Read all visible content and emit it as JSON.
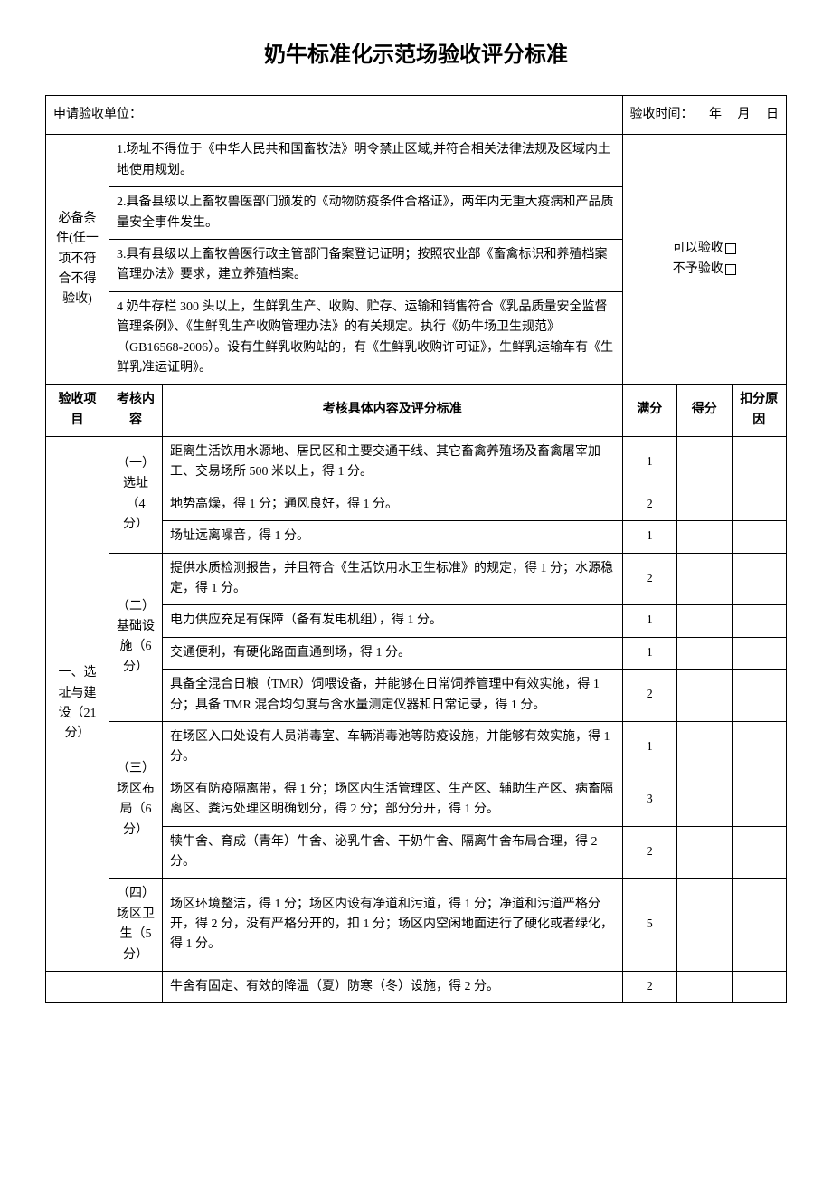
{
  "title": "奶牛标准化示范场验收评分标准",
  "header": {
    "unit_label": "申请验收单位：",
    "date_label": "验收时间：",
    "year": "年",
    "month": "月",
    "day": "日"
  },
  "prerequisites": {
    "label": "必备条件(任一项不符合不得验收)",
    "items": [
      "1.场址不得位于《中华人民共和国畜牧法》明令禁止区域,并符合相关法律法规及区域内土地使用规划。",
      "2.具备县级以上畜牧兽医部门颁发的《动物防疫条件合格证》，两年内无重大疫病和产品质量安全事件发生。",
      "3.具有县级以上畜牧兽医行政主管部门备案登记证明；按照农业部《畜禽标识和养殖档案管理办法》要求，建立养殖档案。",
      "4 奶牛存栏 300 头以上，生鲜乳生产、收购、贮存、运输和销售符合《乳品质量安全监督管理条例》、《生鲜乳生产收购管理办法》的有关规定。执行《奶牛场卫生规范》（GB16568-2006）。设有生鲜乳收购站的，有《生鲜乳收购许可证》，生鲜乳运输车有《生鲜乳准运证明》。"
    ],
    "accept_label": "可以验收",
    "reject_label": "不予验收"
  },
  "table_headers": {
    "project": "验收项目",
    "content": "考核内容",
    "criteria": "考核具体内容及评分标准",
    "full_score": "满分",
    "earned": "得分",
    "reason": "扣分原因"
  },
  "section1": {
    "title": "一、选址与建设（21 分）",
    "sub1": {
      "title": "（一）选址（4 分）",
      "rows": [
        {
          "text": "距离生活饮用水源地、居民区和主要交通干线、其它畜禽养殖场及畜禽屠宰加工、交易场所 500 米以上，得 1 分。",
          "score": "1"
        },
        {
          "text": "地势高燥，得 1 分；通风良好，得 1 分。",
          "score": "2"
        },
        {
          "text": "场址远离噪音，得 1 分。",
          "score": "1"
        }
      ]
    },
    "sub2": {
      "title": "（二）基础设施（6 分）",
      "rows": [
        {
          "text": "提供水质检测报告，并且符合《生活饮用水卫生标准》的规定，得 1 分；水源稳定，得 1 分。",
          "score": "2"
        },
        {
          "text": "电力供应充足有保障（备有发电机组），得 1 分。",
          "score": "1"
        },
        {
          "text": "交通便利，有硬化路面直通到场，得 1 分。",
          "score": "1"
        },
        {
          "text": "具备全混合日粮（TMR）饲喂设备，并能够在日常饲养管理中有效实施，得 1 分；具备 TMR 混合均匀度与含水量测定仪器和日常记录，得 1 分。",
          "score": "2"
        }
      ]
    },
    "sub3": {
      "title": "（三）场区布局（6 分）",
      "rows": [
        {
          "text": "在场区入口处设有人员消毒室、车辆消毒池等防疫设施，并能够有效实施，得 1 分。",
          "score": "1"
        },
        {
          "text": "场区有防疫隔离带，得 1 分；场区内生活管理区、生产区、辅助生产区、病畜隔离区、粪污处理区明确划分，得 2 分；部分分开，得 1 分。",
          "score": "3"
        },
        {
          "text": "犊牛舍、育成（青年）牛舍、泌乳牛舍、干奶牛舍、隔离牛舍布局合理，得 2 分。",
          "score": "2"
        }
      ]
    },
    "sub4": {
      "title": "（四）场区卫生（5 分）",
      "rows": [
        {
          "text": "场区环境整洁，得 1 分；场区内设有净道和污道，得 1 分；净道和污道严格分开，得 2 分，没有严格分开的，扣 1 分；场区内空闲地面进行了硬化或者绿化，得 1 分。",
          "score": "5"
        }
      ]
    },
    "extra": {
      "rows": [
        {
          "text": "牛舍有固定、有效的降温（夏）防寒（冬）设施，得 2 分。",
          "score": "2"
        }
      ]
    }
  },
  "colors": {
    "border": "#000000",
    "background": "#ffffff",
    "text": "#000000"
  }
}
